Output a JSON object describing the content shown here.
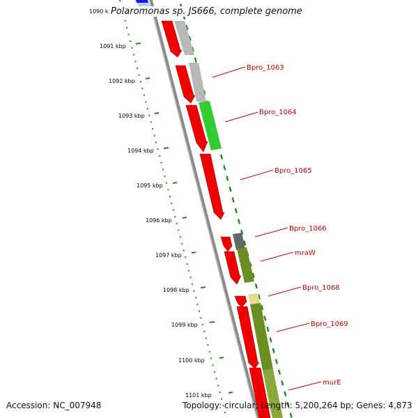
{
  "title": "Polaromonas sp. JS666, complete genome",
  "footer": {
    "accession": "Accession: NC_007948",
    "topology": "Topology: circular;",
    "length": "Length: 5,200,264 bp;",
    "genes": "Genes: 4,873"
  },
  "scale_labels": [
    "1090 k",
    "1091 kbp",
    "1092 kbp",
    "1093 kbp",
    "1094 kbp",
    "1095 kbp",
    "1096 kbp",
    "1097 kbp",
    "1098 kbp",
    "1099 kbp",
    "1100 kbp",
    "1101 kbp"
  ],
  "gene_labels": [
    "Bpro_1063",
    "Bpro_1064",
    "Bpro_1065",
    "Bpro_1066",
    "mraW",
    "Bpro_1068",
    "Bpro_1069",
    "murE"
  ],
  "colors": {
    "backbone": "#8a8a8a",
    "scale_ticks": "#1a8a1a",
    "forward_genes": "#ee0000",
    "label_text": "#cc0000",
    "gray_feature": "#b8b8b8",
    "dark_gray_feature": "#666666",
    "green_feature": "#33cc33",
    "olive_feature": "#6b8e23",
    "yellow_feature": "#e8d890",
    "blue_feature": "#1a1aee"
  }
}
